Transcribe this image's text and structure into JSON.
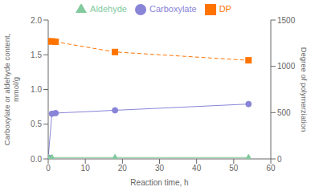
{
  "chart_data": {
    "type": "line",
    "xlabel": "Reaction time, h",
    "ylabel": "Carboxylate or aldehyde content,\nmmol/g",
    "y2label": "Degree of polymerziation",
    "xlim": [
      0,
      60
    ],
    "xticks": [
      0,
      10,
      20,
      30,
      40,
      50,
      60
    ],
    "ylim": [
      0,
      2
    ],
    "yticks": [
      {
        "value": 0,
        "label": "0.0"
      },
      0.5,
      {
        "value": 1,
        "label": "1.0"
      },
      1.5,
      {
        "value": 2,
        "label": "2.0"
      }
    ],
    "y2lim": [
      0,
      1500
    ],
    "y2ticks": [
      0,
      500,
      1000,
      1500
    ],
    "grid": false,
    "legend": "top",
    "series": [
      {
        "name": "Carboxylate",
        "x": [
          0,
          1,
          2,
          18,
          54
        ],
        "values": [
          0.02,
          0.65,
          0.66,
          0.7,
          0.79
        ],
        "color": "#8884d8",
        "marker": "circle",
        "line_style": "solid"
      },
      {
        "name": "Aldehyde",
        "x": [
          0,
          1,
          18,
          54
        ],
        "values": [
          0.02,
          0.02,
          0.02,
          0.02
        ],
        "color": "#82ca9d",
        "marker": "triangle",
        "line_style": "solid"
      },
      {
        "name": "DP",
        "x": [
          0,
          1,
          2,
          18,
          54
        ],
        "values": [
          1270,
          1270,
          1265,
          1155,
          1065
        ],
        "color": "#ff7300",
        "marker": "square",
        "line_style": "dashed",
        "axis": "y2"
      }
    ]
  }
}
